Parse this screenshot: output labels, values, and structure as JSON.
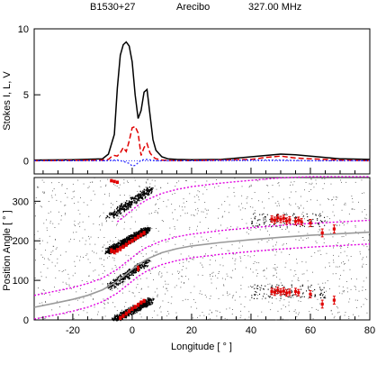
{
  "header": {
    "source": "B1530+27",
    "telescope": "Arecibo",
    "frequency": "327.00 MHz"
  },
  "colors": {
    "total_intensity": "#000000",
    "linear": "#e00000",
    "circular": "#3030ff",
    "rvm_fit": "#9a9a9a",
    "rvm_offset": "#e000e0",
    "pa_points": "#e00000",
    "single_pulse": "#000000"
  },
  "chart_data": [
    {
      "type": "line",
      "ylabel": "Stokes I, L, V",
      "xlim": [
        -33,
        80
      ],
      "ylim": [
        -1,
        10
      ],
      "yticks": [
        0,
        5,
        10
      ],
      "series": [
        {
          "key": "I",
          "x": [
            -33,
            -20,
            -10,
            -8,
            -6,
            -5,
            -4,
            -3,
            -2,
            -1,
            0,
            1,
            2,
            3,
            4,
            5,
            6,
            7,
            8,
            10,
            12,
            15,
            20,
            30,
            40,
            45,
            50,
            55,
            60,
            65,
            70,
            80
          ],
          "y": [
            0.05,
            0.08,
            0.15,
            0.5,
            2.0,
            5.5,
            8.0,
            8.8,
            9.0,
            8.7,
            7.5,
            5.0,
            3.2,
            3.8,
            5.2,
            5.4,
            3.5,
            1.6,
            0.8,
            0.3,
            0.15,
            0.1,
            0.08,
            0.1,
            0.3,
            0.4,
            0.5,
            0.45,
            0.35,
            0.25,
            0.15,
            0.1
          ]
        },
        {
          "key": "L",
          "x": [
            -33,
            -10,
            -8,
            -7,
            -6,
            -5,
            -4,
            -3,
            -2,
            -1,
            0,
            1,
            2,
            3,
            4,
            5,
            6,
            7,
            8,
            10,
            15,
            30,
            40,
            45,
            50,
            55,
            60,
            65,
            70,
            80
          ],
          "y": [
            0.0,
            0.05,
            0.1,
            0.3,
            0.4,
            0.35,
            0.6,
            1.0,
            0.7,
            1.5,
            2.5,
            2.6,
            2.1,
            0.4,
            1.0,
            1.3,
            0.6,
            0.3,
            0.15,
            0.05,
            0.0,
            0.05,
            0.1,
            0.25,
            0.35,
            0.2,
            0.15,
            0.1,
            0.05,
            0.0
          ]
        },
        {
          "key": "V",
          "x": [
            -33,
            -10,
            -5,
            -3,
            -1,
            0,
            1,
            2,
            3,
            5,
            8,
            20,
            40,
            50,
            60,
            80
          ],
          "y": [
            0.0,
            0.0,
            0.05,
            -0.05,
            -0.2,
            -0.4,
            -0.35,
            -0.15,
            0.05,
            0.1,
            0.0,
            0.0,
            0.05,
            0.05,
            0.0,
            0.0
          ]
        }
      ]
    },
    {
      "type": "scatter",
      "xlabel": "Longitude [ ° ]",
      "ylabel": "Position Angle [ ° ]",
      "xlim": [
        -33,
        80
      ],
      "ylim": [
        0,
        360
      ],
      "xticks": [
        -20,
        0,
        20,
        40,
        60,
        80
      ],
      "yticks": [
        0,
        100,
        200,
        300
      ],
      "rvm_curve": {
        "x": [
          -33,
          -25,
          -20,
          -15,
          -10,
          -5,
          -2,
          0,
          2,
          5,
          10,
          15,
          20,
          30,
          40,
          50,
          60,
          70,
          80
        ],
        "y": [
          32,
          44,
          52,
          62,
          76,
          98,
          116,
          128,
          140,
          154,
          170,
          180,
          187,
          196,
          203,
          209,
          214,
          218,
          222
        ]
      },
      "rvm_offset_upper": {
        "x": [
          -33,
          -25,
          -20,
          -15,
          -10,
          -5,
          -2,
          0,
          2,
          5,
          10,
          15,
          20,
          30,
          40,
          50,
          60,
          70,
          80
        ],
        "y": [
          62,
          74,
          82,
          92,
          106,
          128,
          146,
          158,
          170,
          184,
          200,
          210,
          217,
          226,
          233,
          239,
          244,
          248,
          252
        ]
      },
      "rvm_offset_lower": {
        "x": [
          -33,
          -25,
          -20,
          -15,
          -10,
          -5,
          -2,
          0,
          2,
          5,
          10,
          15,
          20,
          30,
          40,
          50,
          60,
          70,
          80
        ],
        "y": [
          2,
          14,
          22,
          32,
          46,
          68,
          86,
          98,
          110,
          124,
          140,
          150,
          157,
          166,
          173,
          179,
          184,
          188,
          192
        ]
      },
      "rvm_offset_top": {
        "x": [
          -5,
          -2,
          0,
          2,
          5,
          10,
          15,
          20,
          30,
          40,
          50,
          60,
          70,
          80
        ],
        "y": [
          248,
          266,
          278,
          290,
          304,
          320,
          330,
          337,
          346,
          353,
          359,
          362,
          366,
          370
        ]
      },
      "pa_points": [
        {
          "x": -7,
          "y": 352,
          "err": 3
        },
        {
          "x": -6,
          "y": 350,
          "err": 3
        },
        {
          "x": -5,
          "y": 348,
          "err": 3
        },
        {
          "x": -7,
          "y": 175,
          "err": 5
        },
        {
          "x": -6,
          "y": 172,
          "err": 5
        },
        {
          "x": -5,
          "y": 176,
          "err": 5
        },
        {
          "x": -4,
          "y": 180,
          "err": 5
        },
        {
          "x": -3,
          "y": 185,
          "err": 4
        },
        {
          "x": -2,
          "y": 190,
          "err": 4
        },
        {
          "x": -1,
          "y": 196,
          "err": 4
        },
        {
          "x": 0,
          "y": 200,
          "err": 4
        },
        {
          "x": 1,
          "y": 205,
          "err": 4
        },
        {
          "x": 2,
          "y": 210,
          "err": 4
        },
        {
          "x": 3,
          "y": 215,
          "err": 4
        },
        {
          "x": 4,
          "y": 220,
          "err": 4
        },
        {
          "x": -4,
          "y": 5,
          "err": 4
        },
        {
          "x": -3,
          "y": 10,
          "err": 4
        },
        {
          "x": -2,
          "y": 16,
          "err": 4
        },
        {
          "x": -1,
          "y": 22,
          "err": 4
        },
        {
          "x": 0,
          "y": 28,
          "err": 4
        },
        {
          "x": 1,
          "y": 33,
          "err": 4
        },
        {
          "x": 2,
          "y": 38,
          "err": 4
        },
        {
          "x": 3,
          "y": 44,
          "err": 4
        },
        {
          "x": 4,
          "y": 48,
          "err": 4
        },
        {
          "x": 2,
          "y": 130,
          "err": 6
        },
        {
          "x": 47,
          "y": 255,
          "err": 8
        },
        {
          "x": 48,
          "y": 252,
          "err": 8
        },
        {
          "x": 49,
          "y": 258,
          "err": 8
        },
        {
          "x": 50,
          "y": 254,
          "err": 8
        },
        {
          "x": 51,
          "y": 257,
          "err": 8
        },
        {
          "x": 52,
          "y": 250,
          "err": 8
        },
        {
          "x": 53,
          "y": 253,
          "err": 8
        },
        {
          "x": 55,
          "y": 249,
          "err": 8
        },
        {
          "x": 56,
          "y": 252,
          "err": 8
        },
        {
          "x": 57,
          "y": 248,
          "err": 8
        },
        {
          "x": 60,
          "y": 245,
          "err": 9
        },
        {
          "x": 64,
          "y": 220,
          "err": 10
        },
        {
          "x": 68,
          "y": 230,
          "err": 10
        },
        {
          "x": 47,
          "y": 72,
          "err": 8
        },
        {
          "x": 48,
          "y": 70,
          "err": 8
        },
        {
          "x": 49,
          "y": 75,
          "err": 8
        },
        {
          "x": 50,
          "y": 71,
          "err": 8
        },
        {
          "x": 51,
          "y": 73,
          "err": 8
        },
        {
          "x": 52,
          "y": 68,
          "err": 8
        },
        {
          "x": 53,
          "y": 70,
          "err": 8
        },
        {
          "x": 55,
          "y": 72,
          "err": 8
        },
        {
          "x": 56,
          "y": 69,
          "err": 8
        },
        {
          "x": 60,
          "y": 65,
          "err": 9
        },
        {
          "x": 64,
          "y": 40,
          "err": 10
        },
        {
          "x": 68,
          "y": 50,
          "err": 10
        }
      ],
      "single_pulse_bands": [
        {
          "x": [
            -8,
            5
          ],
          "y": [
            170,
            230
          ],
          "density": 700
        },
        {
          "x": [
            -8,
            6
          ],
          "y": [
            260,
            330
          ],
          "density": 260
        },
        {
          "x": [
            -8,
            5
          ],
          "y": [
            80,
            150
          ],
          "density": 260
        },
        {
          "x": [
            -6,
            6
          ],
          "y": [
            0,
            50
          ],
          "density": 500
        },
        {
          "x": [
            40,
            65
          ],
          "y": [
            60,
            90
          ],
          "density": 120
        },
        {
          "x": [
            40,
            65
          ],
          "y": [
            235,
            270
          ],
          "density": 120
        },
        {
          "x": [
            -33,
            80
          ],
          "y": [
            0,
            360
          ],
          "density": 1200
        }
      ]
    }
  ]
}
